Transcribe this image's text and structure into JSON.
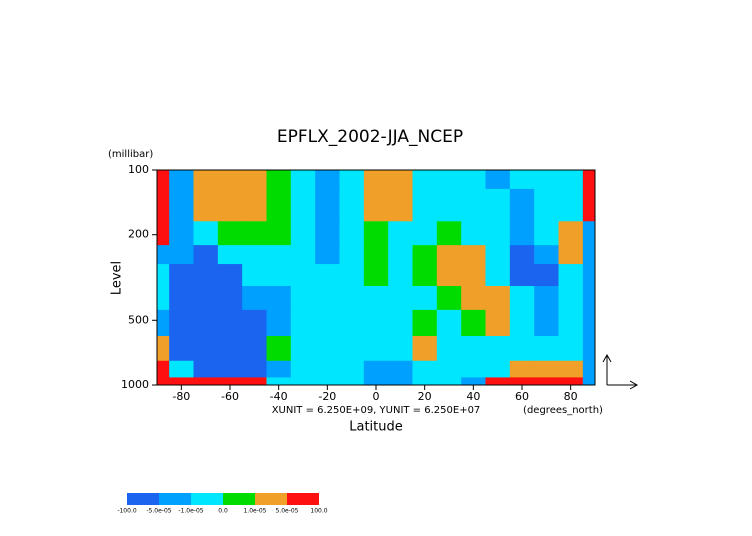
{
  "chart_data": {
    "type": "heatmap",
    "title": "EPFLX_2002-JJA_NCEP",
    "y_unit": "(millibar)",
    "y_label": "Level",
    "x_label": "Latitude",
    "x_unit": "(degrees_north)",
    "annotation": "XUNIT = 6.250E+09, YUNIT = 6.250E+07",
    "x": [
      -90,
      -80,
      -70,
      -60,
      -50,
      -40,
      -30,
      -20,
      -10,
      0,
      10,
      20,
      30,
      40,
      50,
      60,
      70,
      80,
      90
    ],
    "y": [
      100,
      150,
      200,
      250,
      300,
      400,
      500,
      700,
      850,
      1000
    ],
    "z": [
      [
        0.0001,
        -3e-05,
        3e-05,
        3e-05,
        3e-05,
        5e-06,
        -5e-06,
        -3e-05,
        -5e-06,
        3e-05,
        3e-05,
        -5e-06,
        -5e-06,
        -5e-06,
        -3e-05,
        -5e-06,
        -5e-06,
        -5e-06,
        0.0001
      ],
      [
        0.0001,
        -3e-05,
        3e-05,
        3e-05,
        3e-05,
        5e-06,
        -5e-06,
        -3e-05,
        -5e-06,
        3e-05,
        3e-05,
        -5e-06,
        -5e-06,
        -5e-06,
        -5e-06,
        -3e-05,
        -5e-06,
        -5e-06,
        0.0001
      ],
      [
        0.0001,
        -3e-05,
        -5e-06,
        5e-06,
        5e-06,
        5e-06,
        -5e-06,
        -3e-05,
        -5e-06,
        5e-06,
        -5e-06,
        -5e-06,
        5e-06,
        -5e-06,
        -5e-06,
        -3e-05,
        -5e-06,
        3e-05,
        -3e-05
      ],
      [
        -3e-05,
        -3e-05,
        -0.0001,
        -5e-06,
        -5e-06,
        -5e-06,
        -5e-06,
        -3e-05,
        -5e-06,
        5e-06,
        -5e-06,
        5e-06,
        3e-05,
        3e-05,
        -5e-06,
        -0.0001,
        -3e-05,
        3e-05,
        -3e-05
      ],
      [
        -5e-06,
        -0.0001,
        -0.0001,
        -0.0001,
        -5e-06,
        -5e-06,
        -5e-06,
        -5e-06,
        -5e-06,
        5e-06,
        -5e-06,
        5e-06,
        3e-05,
        3e-05,
        -5e-06,
        -0.0001,
        -0.0001,
        -5e-06,
        -3e-05
      ],
      [
        -5e-06,
        -0.0001,
        -0.0001,
        -0.0001,
        -3e-05,
        -3e-05,
        -5e-06,
        -5e-06,
        -5e-06,
        -5e-06,
        -5e-06,
        -5e-06,
        5e-06,
        3e-05,
        3e-05,
        -5e-06,
        -3e-05,
        -5e-06,
        -3e-05
      ],
      [
        -3e-05,
        -0.0001,
        -0.0001,
        -0.0001,
        -0.0001,
        -3e-05,
        -5e-06,
        -5e-06,
        -5e-06,
        -5e-06,
        -5e-06,
        5e-06,
        -5e-06,
        5e-06,
        3e-05,
        -5e-06,
        -3e-05,
        -5e-06,
        -3e-05
      ],
      [
        3e-05,
        -0.0001,
        -0.0001,
        -0.0001,
        -0.0001,
        5e-06,
        -5e-06,
        -5e-06,
        -5e-06,
        -5e-06,
        -5e-06,
        3e-05,
        -5e-06,
        -5e-06,
        -5e-06,
        -5e-06,
        -5e-06,
        -5e-06,
        -3e-05
      ],
      [
        0.0001,
        -5e-06,
        -0.0001,
        -0.0001,
        -0.0001,
        -3e-05,
        -5e-06,
        -5e-06,
        -5e-06,
        -3e-05,
        -3e-05,
        -5e-06,
        -5e-06,
        -5e-06,
        -5e-06,
        3e-05,
        3e-05,
        3e-05,
        -3e-05
      ],
      [
        0.0001,
        0.0001,
        0.0001,
        0.0001,
        0.0001,
        -5e-06,
        -5e-06,
        -5e-06,
        -5e-06,
        -3e-05,
        -3e-05,
        -5e-06,
        -5e-06,
        -3e-05,
        0.0001,
        0.0001,
        0.0001,
        0.0001,
        -3e-05
      ]
    ],
    "xlim": [
      -90,
      90
    ],
    "ylim": [
      100,
      1000
    ],
    "y_log": true,
    "y_inverted": true,
    "xticks": [
      -80,
      -60,
      -40,
      -20,
      0,
      20,
      40,
      60,
      80
    ],
    "yticks": [
      100,
      200,
      500,
      1000
    ],
    "colorbar": {
      "levels": [
        {
          "value": -100,
          "label": "-100.0"
        },
        {
          "value": -5e-05,
          "label": "-5.0e-05"
        },
        {
          "value": -1e-05,
          "label": "-1.0e-05"
        },
        {
          "value": 0,
          "label": "0.0"
        },
        {
          "value": 1e-05,
          "label": "1.0e-05"
        },
        {
          "value": 5e-05,
          "label": "5.0e-05"
        },
        {
          "value": 100,
          "label": "100.0"
        }
      ],
      "colors": [
        "#1a64f0",
        "#00a0ff",
        "#00e6ff",
        "#00dc00",
        "#f0a028",
        "#ff1010"
      ]
    }
  }
}
